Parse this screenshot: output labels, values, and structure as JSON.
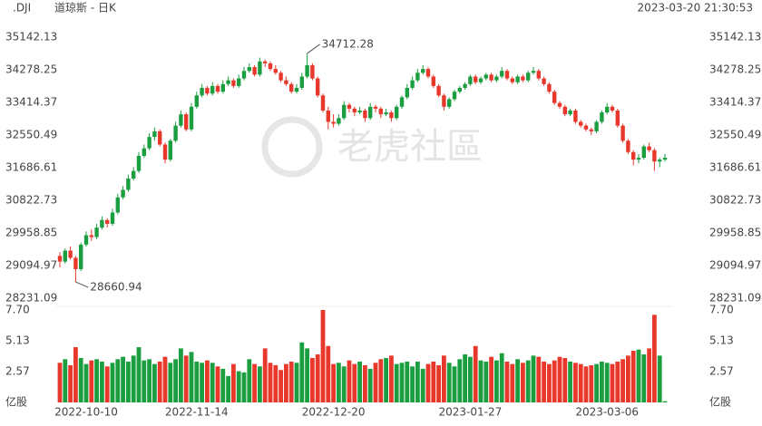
{
  "header": {
    "symbol": ".DJI",
    "name": "道琼斯 - 日K",
    "timestamp": "2023-03-20 21:30:53"
  },
  "watermark": "老虎社區",
  "chart_data": {
    "type": "candlestick",
    "up_color": "#1a9e3f",
    "down_color": "#e8382b",
    "categories": [
      null,
      null,
      null,
      null,
      null,
      "2022-10-10",
      null,
      null,
      null,
      null,
      null,
      null,
      null,
      null,
      null,
      null,
      null,
      null,
      null,
      null,
      null,
      null,
      null,
      null,
      null,
      null,
      "2022-11-14",
      null,
      null,
      null,
      null,
      null,
      null,
      null,
      null,
      null,
      null,
      null,
      null,
      null,
      null,
      null,
      null,
      null,
      null,
      null,
      null,
      null,
      null,
      null,
      null,
      null,
      "2022-12-20",
      null,
      null,
      null,
      null,
      null,
      null,
      null,
      null,
      null,
      null,
      null,
      null,
      null,
      null,
      null,
      null,
      null,
      null,
      null,
      null,
      null,
      null,
      null,
      null,
      null,
      "2023-01-27",
      null,
      null,
      null,
      null,
      null,
      null,
      null,
      null,
      null,
      null,
      null,
      null,
      null,
      null,
      null,
      null,
      null,
      null,
      null,
      null,
      null,
      null,
      null,
      null,
      null,
      "2023-03-06",
      null,
      null,
      null,
      null,
      null,
      null,
      null,
      null,
      null,
      null,
      null
    ],
    "ohlc": [
      [
        29350,
        29450,
        29050,
        29200
      ],
      [
        29200,
        29550,
        29150,
        29490
      ],
      [
        29490,
        29600,
        29250,
        29300
      ],
      [
        29300,
        29350,
        28660.94,
        29000
      ],
      [
        29000,
        29700,
        28950,
        29650
      ],
      [
        29650,
        30000,
        29600,
        29900
      ],
      [
        29900,
        30050,
        29750,
        29850
      ],
      [
        29850,
        30200,
        29800,
        30100
      ],
      [
        30100,
        30400,
        30050,
        30300
      ],
      [
        30300,
        30350,
        30100,
        30200
      ],
      [
        30200,
        30600,
        30150,
        30500
      ],
      [
        30500,
        31000,
        30450,
        30900
      ],
      [
        30900,
        31200,
        30850,
        31100
      ],
      [
        31100,
        31500,
        31050,
        31400
      ],
      [
        31400,
        31700,
        31350,
        31600
      ],
      [
        31600,
        32100,
        31550,
        32000
      ],
      [
        32000,
        32300,
        31950,
        32200
      ],
      [
        32200,
        32600,
        32150,
        32500
      ],
      [
        32500,
        32750,
        32400,
        32650
      ],
      [
        32650,
        32700,
        32250,
        32300
      ],
      [
        32300,
        32350,
        31800,
        31900
      ],
      [
        31900,
        32450,
        31850,
        32400
      ],
      [
        32400,
        32900,
        32350,
        32800
      ],
      [
        32800,
        33200,
        32750,
        33100
      ],
      [
        33100,
        33150,
        32650,
        32700
      ],
      [
        32700,
        33400,
        32650,
        33300
      ],
      [
        33300,
        33700,
        33250,
        33600
      ],
      [
        33600,
        33900,
        33550,
        33800
      ],
      [
        33800,
        33850,
        33600,
        33650
      ],
      [
        33650,
        33950,
        33600,
        33850
      ],
      [
        33850,
        33900,
        33650,
        33700
      ],
      [
        33700,
        34000,
        33650,
        33900
      ],
      [
        33900,
        34100,
        33850,
        34000
      ],
      [
        34000,
        34050,
        33800,
        33850
      ],
      [
        33850,
        34150,
        33800,
        34050
      ],
      [
        34050,
        34350,
        34000,
        34250
      ],
      [
        34250,
        34450,
        34200,
        34350
      ],
      [
        34350,
        34400,
        34100,
        34150
      ],
      [
        34150,
        34600,
        34100,
        34500
      ],
      [
        34500,
        34550,
        34350,
        34450
      ],
      [
        34450,
        34500,
        34250,
        34300
      ],
      [
        34300,
        34400,
        34150,
        34200
      ],
      [
        34200,
        34250,
        33950,
        34000
      ],
      [
        34000,
        34100,
        33850,
        33900
      ],
      [
        33900,
        33950,
        33650,
        33700
      ],
      [
        33700,
        33900,
        33650,
        33800
      ],
      [
        33800,
        34200,
        33750,
        34100
      ],
      [
        34100,
        34712.28,
        34050,
        34400
      ],
      [
        34400,
        34450,
        34000,
        34050
      ],
      [
        34050,
        34100,
        33550,
        33600
      ],
      [
        33600,
        33650,
        33150,
        33200
      ],
      [
        33200,
        33300,
        32700,
        32900
      ],
      [
        32900,
        33100,
        32750,
        32850
      ],
      [
        32850,
        33100,
        32800,
        33000
      ],
      [
        33000,
        33450,
        32950,
        33350
      ],
      [
        33350,
        33400,
        33150,
        33250
      ],
      [
        33250,
        33300,
        33050,
        33150
      ],
      [
        33150,
        33300,
        33100,
        33200
      ],
      [
        33200,
        33250,
        32900,
        33000
      ],
      [
        33000,
        33400,
        32950,
        33300
      ],
      [
        33300,
        33350,
        33150,
        33250
      ],
      [
        33250,
        33300,
        33000,
        33100
      ],
      [
        33100,
        33250,
        33050,
        33150
      ],
      [
        33150,
        33200,
        32900,
        33000
      ],
      [
        33000,
        33350,
        32950,
        33300
      ],
      [
        33300,
        33600,
        33250,
        33550
      ],
      [
        33550,
        33900,
        33500,
        33800
      ],
      [
        33800,
        34100,
        33750,
        34000
      ],
      [
        34000,
        34300,
        33950,
        34200
      ],
      [
        34200,
        34400,
        34150,
        34300
      ],
      [
        34300,
        34350,
        34050,
        34100
      ],
      [
        34100,
        34150,
        33800,
        33850
      ],
      [
        33850,
        33900,
        33550,
        33600
      ],
      [
        33600,
        33650,
        33200,
        33300
      ],
      [
        33300,
        33550,
        33250,
        33500
      ],
      [
        33500,
        33750,
        33450,
        33700
      ],
      [
        33700,
        33850,
        33650,
        33800
      ],
      [
        33800,
        33950,
        33750,
        33900
      ],
      [
        33900,
        34150,
        33850,
        34100
      ],
      [
        34100,
        34150,
        33900,
        33950
      ],
      [
        33950,
        34100,
        33900,
        34050
      ],
      [
        34050,
        34200,
        34000,
        34150
      ],
      [
        34150,
        34200,
        33950,
        34000
      ],
      [
        34000,
        34150,
        33950,
        34100
      ],
      [
        34100,
        34350,
        34050,
        34250
      ],
      [
        34250,
        34300,
        34000,
        34050
      ],
      [
        34050,
        34100,
        33900,
        33950
      ],
      [
        33950,
        34150,
        33900,
        34100
      ],
      [
        34100,
        34150,
        33950,
        34000
      ],
      [
        34000,
        34250,
        33950,
        34200
      ],
      [
        34200,
        34350,
        34150,
        34250
      ],
      [
        34250,
        34300,
        34000,
        34050
      ],
      [
        34050,
        34100,
        33850,
        33900
      ],
      [
        33900,
        33950,
        33650,
        33700
      ],
      [
        33700,
        33750,
        33350,
        33400
      ],
      [
        33400,
        33450,
        33250,
        33300
      ],
      [
        33300,
        33350,
        33050,
        33100
      ],
      [
        33100,
        33250,
        33050,
        33200
      ],
      [
        33200,
        33250,
        32850,
        32900
      ],
      [
        32900,
        32950,
        32750,
        32800
      ],
      [
        32800,
        32850,
        32650,
        32700
      ],
      [
        32700,
        32750,
        32550,
        32650
      ],
      [
        32650,
        32950,
        32600,
        32900
      ],
      [
        32900,
        33200,
        32850,
        33150
      ],
      [
        33150,
        33400,
        33100,
        33300
      ],
      [
        33300,
        33350,
        33150,
        33200
      ],
      [
        33200,
        33250,
        32750,
        32800
      ],
      [
        32800,
        32850,
        32350,
        32400
      ],
      [
        32400,
        32450,
        32050,
        32100
      ],
      [
        32100,
        32150,
        31750,
        31900
      ],
      [
        31900,
        32050,
        31800,
        31950
      ],
      [
        31950,
        32300,
        31900,
        32250
      ],
      [
        32250,
        32350,
        32100,
        32150
      ],
      [
        32150,
        32200,
        31600,
        31850
      ],
      [
        31850,
        31950,
        31700,
        31900
      ],
      [
        31900,
        32050,
        31850,
        31950
      ]
    ],
    "ylim": [
      28087,
      35263
    ],
    "yticks": [
      35142.13,
      34278.25,
      33414.37,
      32550.49,
      31686.61,
      30822.73,
      29958.85,
      29094.97,
      28231.09
    ],
    "volume": [
      3.3,
      3.6,
      3.1,
      4.6,
      3.7,
      3.2,
      3.5,
      3.6,
      3.4,
      3.0,
      3.3,
      3.6,
      3.8,
      3.4,
      3.9,
      4.6,
      3.5,
      3.6,
      3.2,
      3.4,
      3.8,
      3.3,
      3.6,
      4.5,
      3.9,
      4.2,
      3.4,
      3.3,
      3.5,
      3.3,
      3.0,
      2.8,
      2.2,
      3.2,
      2.6,
      2.5,
      3.6,
      3.2,
      3.0,
      4.5,
      3.3,
      3.1,
      2.7,
      3.2,
      3.4,
      3.3,
      5.0,
      4.5,
      3.7,
      4.0,
      7.7,
      4.7,
      3.2,
      3.3,
      3.0,
      3.5,
      3.2,
      3.4,
      3.1,
      2.8,
      3.3,
      3.6,
      3.7,
      3.9,
      3.2,
      3.3,
      3.4,
      3.0,
      3.4,
      2.8,
      3.2,
      3.4,
      3.1,
      3.9,
      3.3,
      3.0,
      3.6,
      4.0,
      3.8,
      4.7,
      3.5,
      3.4,
      3.8,
      3.5,
      4.1,
      3.4,
      3.2,
      3.6,
      3.3,
      3.5,
      3.9,
      3.8,
      3.4,
      3.2,
      3.5,
      3.8,
      3.7,
      3.4,
      3.3,
      3.2,
      3.0,
      3.1,
      3.2,
      3.4,
      3.3,
      3.2,
      3.4,
      3.6,
      3.9,
      4.3,
      4.4,
      4.0,
      4.5,
      7.3,
      3.9,
      0.1
    ],
    "volume_ylim": [
      0,
      7.7
    ],
    "volume_yticks": [
      {
        "value": 7.7,
        "label": "7.70"
      },
      5.13,
      2.57,
      {
        "value": 0,
        "label": "亿股"
      }
    ]
  }
}
